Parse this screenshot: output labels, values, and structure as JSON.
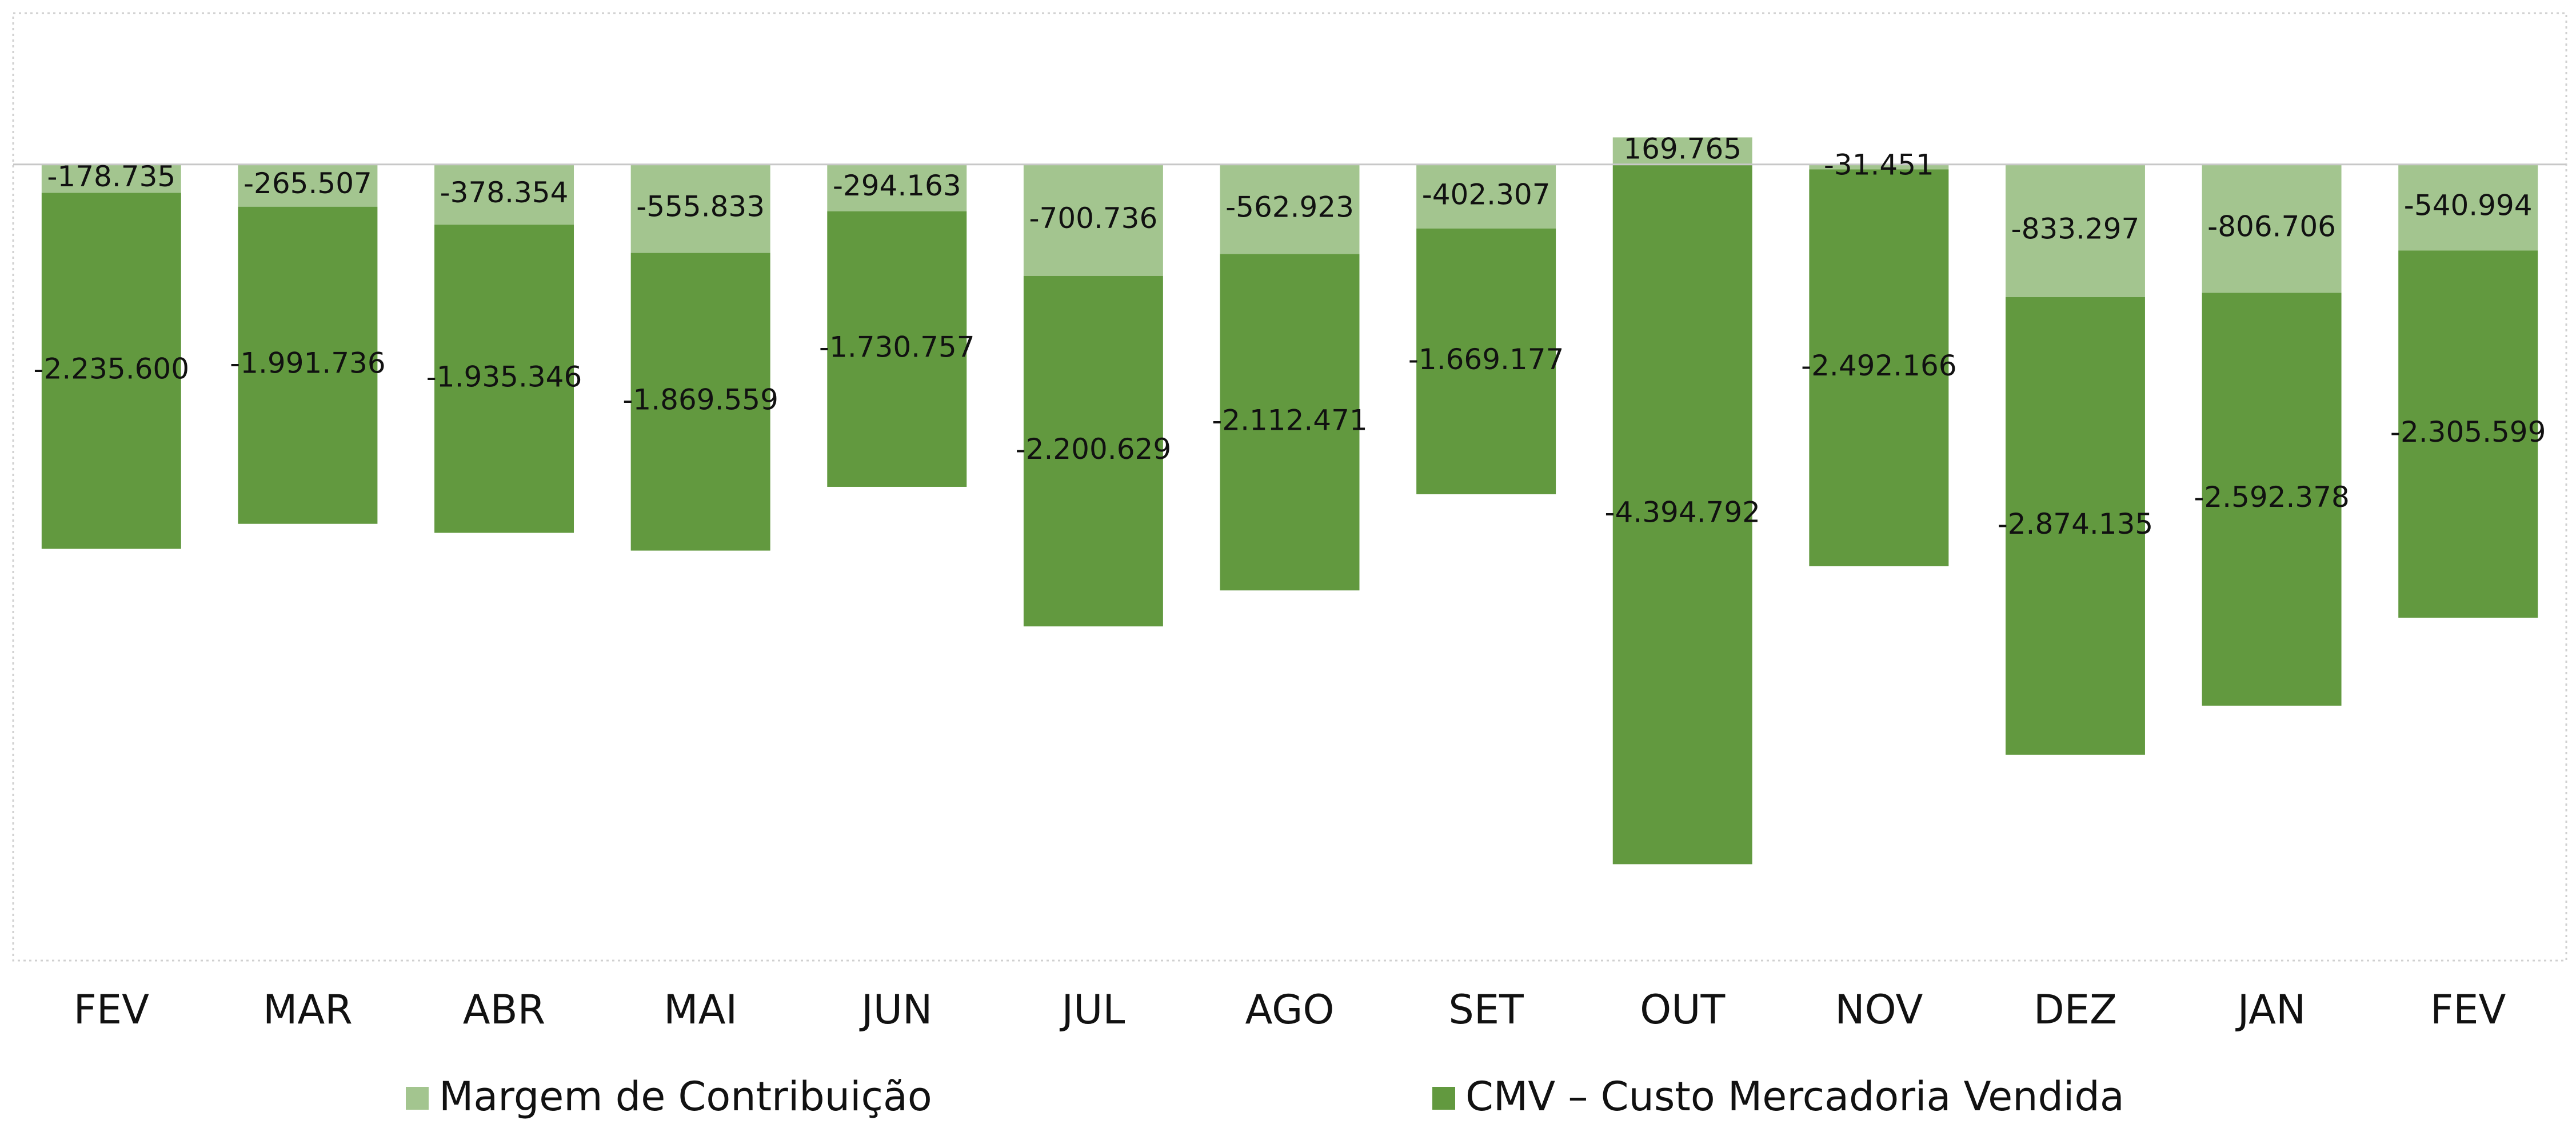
{
  "chart_data": {
    "type": "stacked_bar",
    "categories": [
      "FEV",
      "MAR",
      "ABR",
      "MAI",
      "JUN",
      "JUL",
      "AGO",
      "SET",
      "OUT",
      "NOV",
      "DEZ",
      "JAN",
      "FEV"
    ],
    "series": [
      {
        "name": "Margem de Contribuição",
        "color": "#a3c58f",
        "values": [
          -178735,
          -265507,
          -378354,
          -555833,
          -294163,
          -700736,
          -562923,
          -402307,
          169765,
          -31451,
          -833297,
          -806706,
          -540994
        ],
        "value_labels": [
          "-178.735",
          "-265.507",
          "-378.354",
          "-555.833",
          "-294.163",
          "-700.736",
          "-562.923",
          "-402.307",
          "169.765",
          "-31.451",
          "-833.297",
          "-806.706",
          "-540.994"
        ]
      },
      {
        "name": "CMV – Custo Mercadoria Vendida",
        "color": "#62993f",
        "values": [
          -2235600,
          -1991736,
          -1935346,
          -1869559,
          -1730757,
          -2200629,
          -2112471,
          -1669177,
          -4394792,
          -2492166,
          -2874135,
          -2592378,
          -2305599
        ],
        "value_labels": [
          "-2.235.600",
          "-1.991.736",
          "-1.935.346",
          "-1.869.559",
          "-1.730.757",
          "-2.200.629",
          "-2.112.471",
          "-1.669.177",
          "-4.394.792",
          "-2.492.166",
          "-2.874.135",
          "-2.592.378",
          "-2.305.599"
        ]
      }
    ],
    "ylim": [
      -5000000,
      950000
    ],
    "legend": "bottom"
  }
}
